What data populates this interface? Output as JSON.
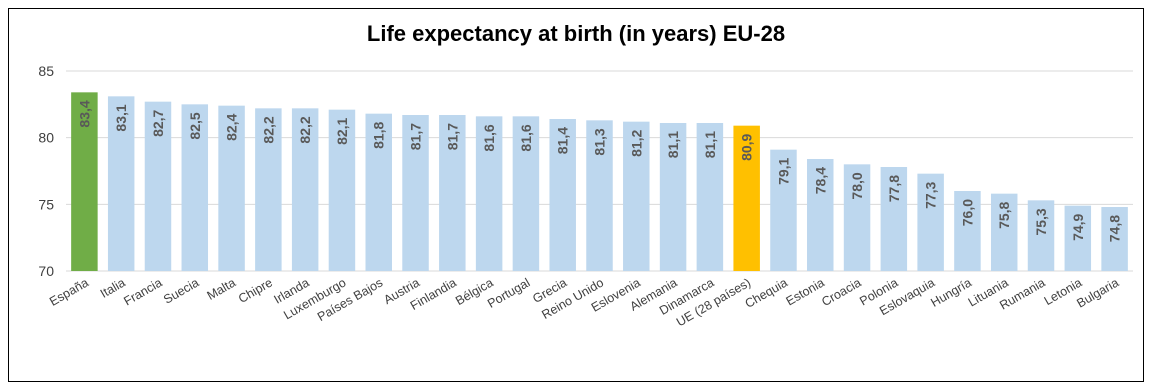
{
  "chart_data": {
    "type": "bar",
    "title": "Life expectancy at birth (in years)  EU-28",
    "xlabel": "",
    "ylabel": "",
    "ylim": [
      70,
      85
    ],
    "yticks": [
      70,
      75,
      80,
      85
    ],
    "grid": true,
    "legend": "none",
    "categories": [
      "España",
      "Italia",
      "Francia",
      "Suecia",
      "Malta",
      "Chipre",
      "Irlanda",
      "Luxemburgo",
      "Países Bajos",
      "Austria",
      "Finlandia",
      "Bélgica",
      "Portugal",
      "Grecia",
      "Reino Unido",
      "Eslovenia",
      "Alemania",
      "Dinamarca",
      "UE (28 países)",
      "Chequia",
      "Estonia",
      "Croacia",
      "Polonia",
      "Eslovaquia",
      "Hungría",
      "Lituania",
      "Rumania",
      "Letonia",
      "Bulgaria"
    ],
    "values": [
      83.4,
      83.1,
      82.7,
      82.5,
      82.4,
      82.2,
      82.2,
      82.1,
      81.8,
      81.7,
      81.7,
      81.6,
      81.6,
      81.4,
      81.3,
      81.2,
      81.1,
      81.1,
      80.9,
      79.1,
      78.4,
      78.0,
      77.8,
      77.3,
      76.0,
      75.8,
      75.3,
      74.9,
      74.8
    ],
    "value_labels": [
      "83,4",
      "83,1",
      "82,7",
      "82,5",
      "82,4",
      "82,2",
      "82,2",
      "82,1",
      "81,8",
      "81,7",
      "81,7",
      "81,6",
      "81,6",
      "81,4",
      "81,3",
      "81,2",
      "81,1",
      "81,1",
      "80,9",
      "79,1",
      "78,4",
      "78,0",
      "77,8",
      "77,3",
      "76,0",
      "75,8",
      "75,3",
      "74,9",
      "74,8"
    ],
    "highlights": {
      "España": "#70AD47",
      "UE (28 países)": "#FFC000"
    }
  },
  "colors": {
    "bar_default": "#BDD7EE",
    "bar_spain": "#70AD47",
    "bar_eu": "#FFC000",
    "gridline": "#D9D9D9",
    "text": "#404040",
    "value_label": "#595959"
  }
}
